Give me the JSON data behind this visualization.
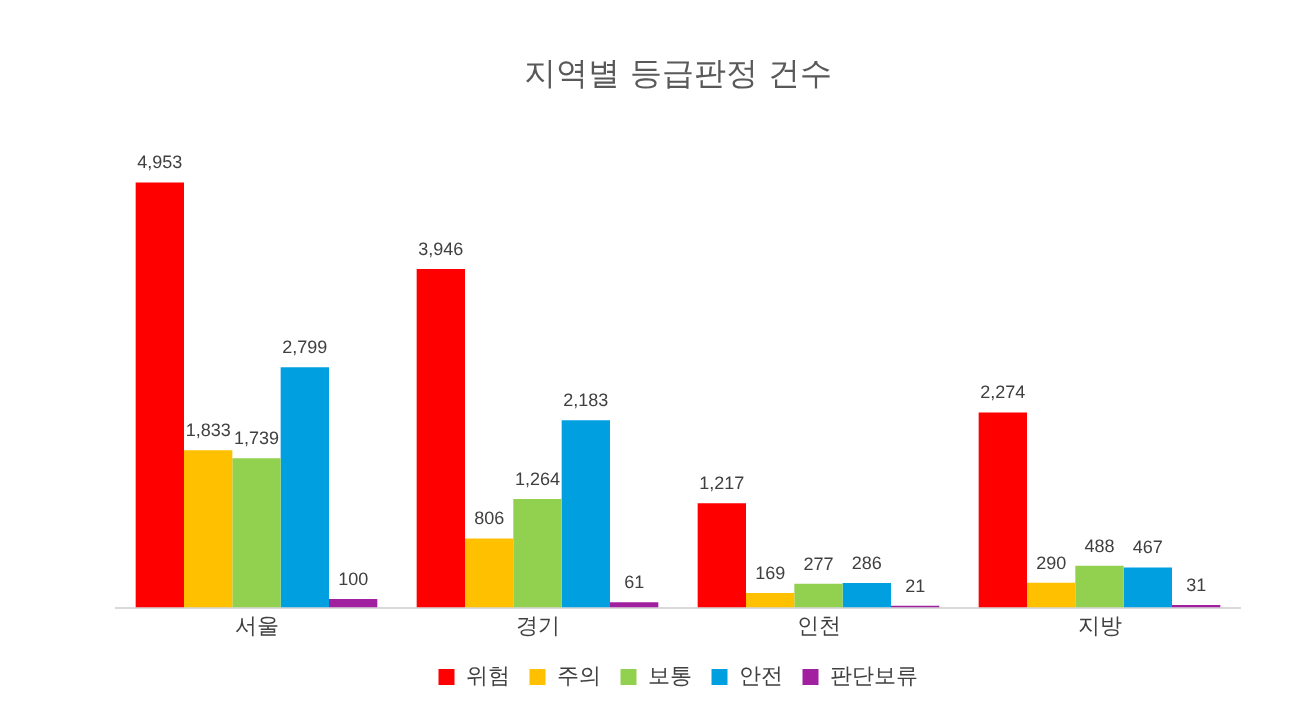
{
  "chart_data": {
    "type": "bar",
    "title": "지역별 등급판정 건수",
    "categories": [
      "서울",
      "경기",
      "인천",
      "지방"
    ],
    "series": [
      {
        "name": "위험",
        "color": "#ff0000",
        "values": [
          4953,
          3946,
          1217,
          2274
        ],
        "value_labels": [
          "4,953",
          "3,946",
          "1,217",
          "2,274"
        ]
      },
      {
        "name": "주의",
        "color": "#ffc000",
        "values": [
          1833,
          806,
          169,
          290
        ],
        "value_labels": [
          "1,833",
          "806",
          "169",
          "290"
        ]
      },
      {
        "name": "보통",
        "color": "#92d050",
        "values": [
          1739,
          1264,
          277,
          488
        ],
        "value_labels": [
          "1,739",
          "1,264",
          "277",
          "488"
        ]
      },
      {
        "name": "안전",
        "color": "#00a0e0",
        "values": [
          2799,
          2183,
          286,
          467
        ],
        "value_labels": [
          "2,799",
          "2,183",
          "286",
          "467"
        ]
      },
      {
        "name": "판단보류",
        "color": "#a020a0",
        "values": [
          100,
          61,
          21,
          31
        ],
        "value_labels": [
          "100",
          "61",
          "21",
          "31"
        ]
      }
    ],
    "legend": "bottom",
    "grid": false
  }
}
